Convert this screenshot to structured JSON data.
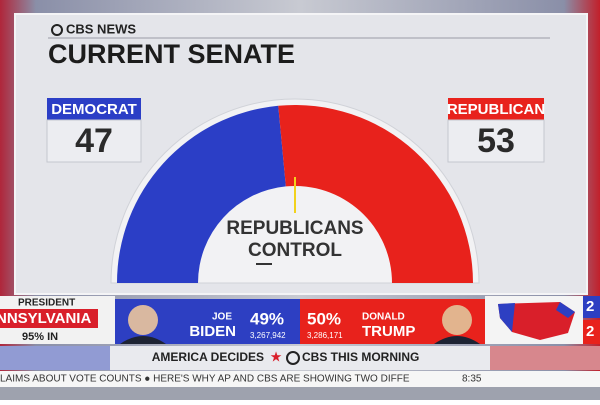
{
  "header": {
    "brand": "CBS NEWS",
    "title": "CURRENT SENATE"
  },
  "senate": {
    "parties": [
      {
        "name": "DEMOCRAT",
        "seats": 47,
        "color": "#2b3ec6"
      },
      {
        "name": "REPUBLICAN",
        "seats": 53,
        "color": "#e8221c"
      }
    ],
    "center_label": [
      "REPUBLICANS",
      "CONTROL"
    ]
  },
  "ticker": {
    "race": "PRESIDENT",
    "state": "NNSYLVANIA",
    "reporting": "95% IN",
    "candidates": [
      {
        "first": "JOE",
        "last": "BIDEN",
        "pct": "49%",
        "votes": "3,267,942"
      },
      {
        "first": "DONALD",
        "last": "TRUMP",
        "pct": "50%",
        "votes": "3,286,171"
      }
    ],
    "side_counts": [
      "2",
      "2"
    ]
  },
  "banner": {
    "left": "AMERICA DECIDES",
    "right": "CBS THIS MORNING"
  },
  "crawl": {
    "text": "LAIMS ABOUT VOTE COUNTS ● HERE'S WHY AP AND CBS ARE SHOWING TWO DIFFE",
    "time": "8:35"
  }
}
